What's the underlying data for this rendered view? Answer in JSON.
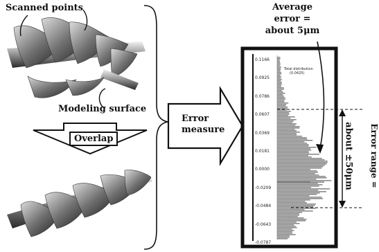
{
  "labels": {
    "scanned_points": "Scanned points",
    "modeling_surface": "Modeling surface",
    "overlap": "Overlap",
    "error_measure_line1": "Error",
    "error_measure_line2": "measure",
    "average_error_line1": "Average",
    "average_error_line2": "error =",
    "average_error_line3": "about 5μm",
    "error_range_line1": "Error range =",
    "error_range_line2": "about ±50μm"
  },
  "histogram": {
    "legend_title": "Total distribution",
    "legend_value": "(0.0425)",
    "tick_labels": [
      "0.1166",
      "0.0925",
      "0.0786",
      "0.0607",
      "0.0369",
      "0.0181",
      "0.0000",
      "-0.0209",
      "-0.0484",
      "-0.0643",
      "-0.0787"
    ]
  },
  "colors": {
    "arrow_fill": "#ffffff",
    "histogram_fill": "#8a8a8a",
    "frame": "#111111"
  }
}
